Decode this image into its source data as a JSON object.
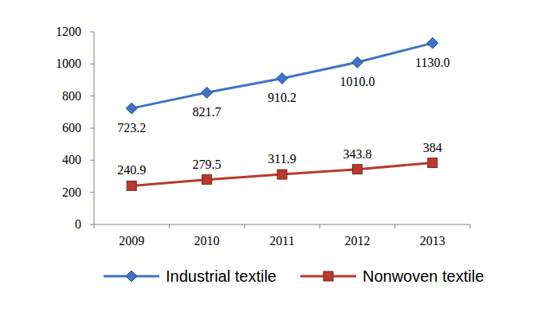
{
  "chart_data": {
    "type": "line",
    "categories": [
      "2009",
      "2010",
      "2011",
      "2012",
      "2013"
    ],
    "series": [
      {
        "name": "Industrial textile",
        "color": "#3f73c6",
        "marker": "diamond",
        "line_style": "solid",
        "values": [
          723.2,
          821.7,
          910.2,
          1010.0,
          1130.0
        ],
        "value_labels": [
          "723.2",
          "821.7",
          "910.2",
          "1010.0",
          "1130.0"
        ]
      },
      {
        "name": "Nonwoven textile",
        "color": "#b83a2c",
        "marker": "square",
        "line_style": "solid",
        "values": [
          240.9,
          279.5,
          311.9,
          343.8,
          384
        ]
      }
    ],
    "ylim": [
      0,
      1200
    ],
    "yticks": [
      0,
      200,
      400,
      600,
      800,
      1000,
      1200
    ],
    "grid": false,
    "legend": "bottom",
    "data_labels": true
  }
}
